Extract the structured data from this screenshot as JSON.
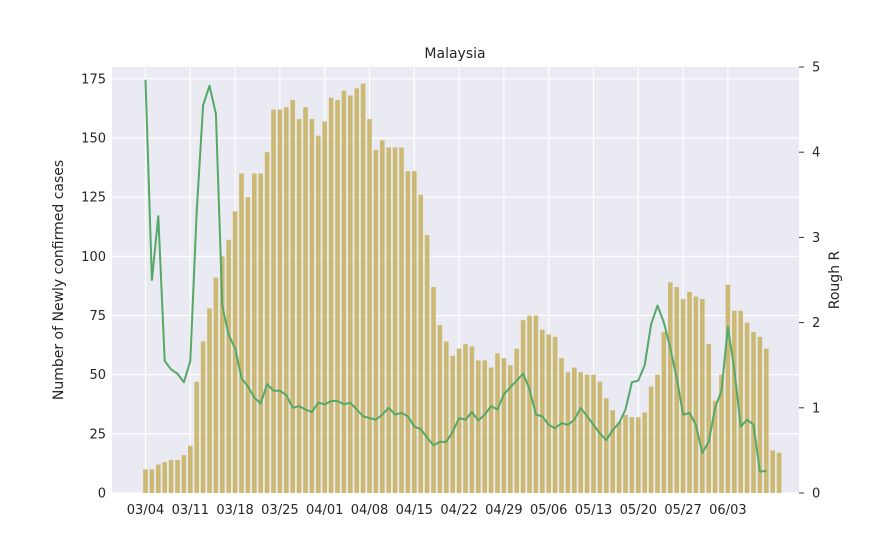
{
  "chart_data": {
    "type": "bar",
    "title": "Malaysia",
    "ylabel_left": "Number of Newly confirmed cases",
    "ylabel_right": "Rough R",
    "xlabel": "",
    "ylim_left": [
      0,
      180
    ],
    "ylim_right": [
      0,
      5
    ],
    "yticks_left": [
      "0",
      "25",
      "50",
      "75",
      "100",
      "125",
      "150",
      "175"
    ],
    "yticks_right": [
      "0",
      "1",
      "2",
      "3",
      "4",
      "5"
    ],
    "x_tick_labels": [
      "03/04",
      "03/11",
      "03/18",
      "03/25",
      "04/01",
      "04/08",
      "04/15",
      "04/22",
      "04/29",
      "05/06",
      "05/13",
      "05/20",
      "05/27",
      "06/03"
    ],
    "grid": true,
    "colors": {
      "bars": "#ccb974",
      "line": "#55a868",
      "background": "#eaeaf2",
      "grid": "#ffffff"
    },
    "series": [
      {
        "kind": "bar",
        "axis": "left",
        "values": [
          10,
          10,
          12,
          13,
          14,
          14,
          16,
          20,
          47,
          64,
          78,
          91,
          100,
          107,
          119,
          135,
          125,
          135,
          135,
          144,
          162,
          162,
          163,
          166,
          158,
          163,
          158,
          151,
          157,
          167,
          166,
          170,
          168,
          171,
          173,
          158,
          145,
          149,
          146,
          146,
          146,
          136,
          136,
          126,
          109,
          87,
          71,
          64,
          58,
          61,
          63,
          62,
          56,
          56,
          53,
          59,
          57,
          54,
          61,
          73,
          75,
          75,
          69,
          67,
          66,
          57,
          51,
          53,
          51,
          50,
          50,
          47,
          40,
          35,
          30,
          33,
          32,
          32,
          34,
          45,
          50,
          68,
          89,
          87,
          82,
          85,
          83,
          82,
          63,
          39,
          50,
          88,
          77,
          77,
          72,
          68,
          66,
          61,
          18,
          17
        ]
      },
      {
        "kind": "line",
        "axis": "right",
        "values": [
          4.85,
          2.5,
          3.25,
          1.55,
          1.45,
          1.4,
          1.3,
          1.55,
          3.3,
          4.55,
          4.78,
          4.45,
          2.2,
          1.85,
          1.7,
          1.35,
          1.25,
          1.12,
          1.05,
          1.28,
          1.2,
          1.2,
          1.15,
          1.0,
          1.02,
          0.98,
          0.95,
          1.06,
          1.04,
          1.08,
          1.08,
          1.04,
          1.06,
          0.98,
          0.9,
          0.88,
          0.86,
          0.92,
          1.0,
          0.92,
          0.94,
          0.9,
          0.78,
          0.75,
          0.65,
          0.56,
          0.6,
          0.6,
          0.72,
          0.88,
          0.86,
          0.95,
          0.85,
          0.92,
          1.02,
          0.98,
          1.16,
          1.24,
          1.32,
          1.4,
          1.22,
          0.92,
          0.9,
          0.8,
          0.76,
          0.82,
          0.8,
          0.86,
          1.0,
          0.9,
          0.8,
          0.7,
          0.62,
          0.74,
          0.82,
          0.98,
          1.3,
          1.32,
          1.5,
          1.98,
          2.2,
          2.0,
          1.7,
          1.35,
          0.92,
          0.94,
          0.8,
          0.47,
          0.6,
          1.0,
          1.2,
          1.95,
          1.45,
          0.78,
          0.86,
          0.8,
          0.25,
          0.26
        ]
      }
    ]
  }
}
